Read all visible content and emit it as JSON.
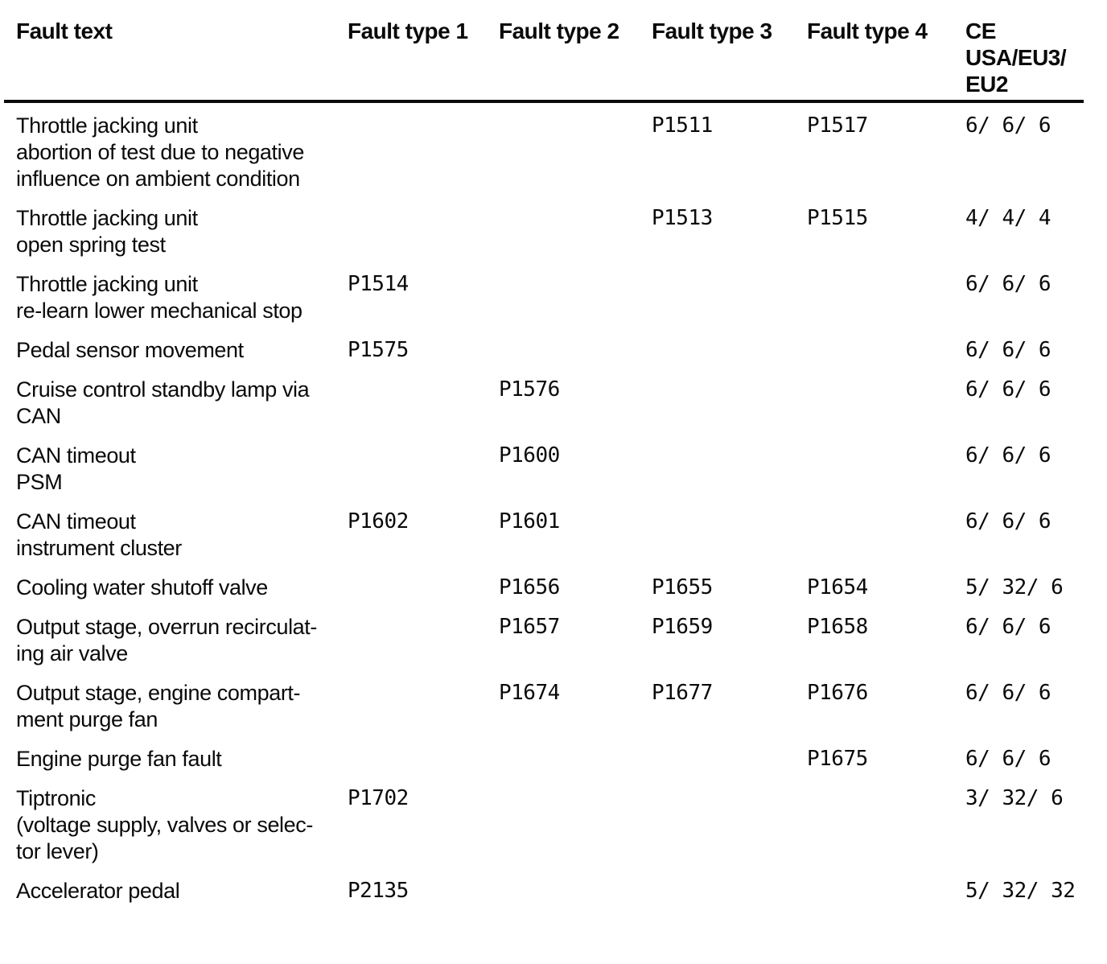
{
  "table": {
    "headers": {
      "fault_text": "Fault text",
      "type1": "Fault type 1",
      "type2": "Fault type 2",
      "type3": "Fault type 3",
      "type4": "Fault type 4",
      "ce": "CE\nUSA/EU3/\nEU2"
    },
    "rows": [
      {
        "fault_text": "Throttle jacking unit\nabortion of test due to negative\ninfluence on ambient condition",
        "type1": "",
        "type2": "",
        "type3": "P1511",
        "type4": "P1517",
        "ce": "6/ 6/ 6"
      },
      {
        "fault_text": "Throttle jacking unit\nopen spring test",
        "type1": "",
        "type2": "",
        "type3": "P1513",
        "type4": "P1515",
        "ce": "4/ 4/ 4"
      },
      {
        "fault_text": "Throttle jacking unit\nre-learn lower mechanical stop",
        "type1": "P1514",
        "type2": "",
        "type3": "",
        "type4": "",
        "ce": "6/ 6/ 6"
      },
      {
        "fault_text": "Pedal sensor movement",
        "type1": "P1575",
        "type2": "",
        "type3": "",
        "type4": "",
        "ce": "6/ 6/ 6"
      },
      {
        "fault_text": "Cruise control standby lamp via\nCAN",
        "type1": "",
        "type2": "P1576",
        "type3": "",
        "type4": "",
        "ce": "6/ 6/ 6"
      },
      {
        "fault_text": "CAN timeout\nPSM",
        "type1": "",
        "type2": "P1600",
        "type3": "",
        "type4": "",
        "ce": "6/ 6/ 6"
      },
      {
        "fault_text": "CAN timeout\ninstrument cluster",
        "type1": "P1602",
        "type2": "P1601",
        "type3": "",
        "type4": "",
        "ce": "6/ 6/ 6"
      },
      {
        "fault_text": "Cooling water shutoff valve",
        "type1": "",
        "type2": "P1656",
        "type3": "P1655",
        "type4": "P1654",
        "ce": "5/ 32/ 6"
      },
      {
        "fault_text": "Output stage, overrun recirculat-\ning air valve",
        "type1": "",
        "type2": "P1657",
        "type3": "P1659",
        "type4": "P1658",
        "ce": "6/ 6/ 6"
      },
      {
        "fault_text": "Output stage, engine compart-\nment purge fan",
        "type1": "",
        "type2": "P1674",
        "type3": "P1677",
        "type4": "P1676",
        "ce": "6/ 6/ 6"
      },
      {
        "fault_text": "Engine purge fan fault",
        "type1": "",
        "type2": "",
        "type3": "",
        "type4": "P1675",
        "ce": "6/ 6/ 6"
      },
      {
        "fault_text": "Tiptronic\n(voltage supply, valves or selec-\ntor lever)",
        "type1": "P1702",
        "type2": "",
        "type3": "",
        "type4": "",
        "ce": "3/ 32/ 6"
      },
      {
        "fault_text": "Accelerator pedal",
        "type1": "P2135",
        "type2": "",
        "type3": "",
        "type4": "",
        "ce": "5/ 32/ 32"
      }
    ]
  }
}
